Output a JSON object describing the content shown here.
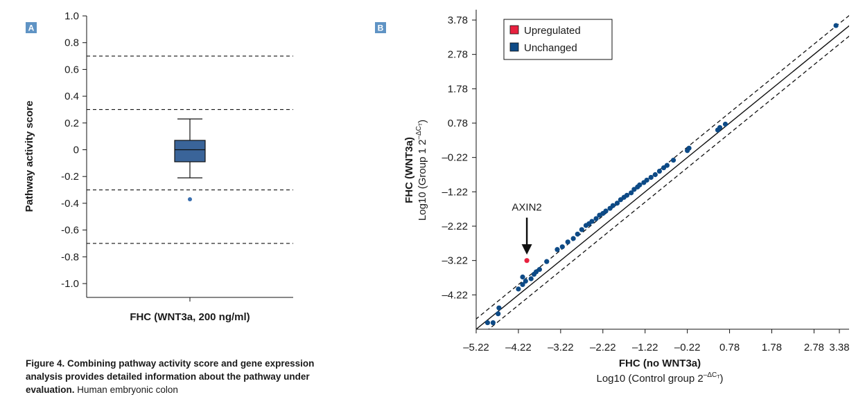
{
  "chart_data": [
    {
      "type": "box",
      "panel_label": "A",
      "ylabel": "Pathway activity score",
      "xlabel": "FHC (WNT3a, 200 ng/ml)",
      "ylim": [
        -1.1,
        1.0
      ],
      "yticks": [
        "1.0",
        "0.8",
        "0.6",
        "0.4",
        "0.2",
        "0",
        "-0.2",
        "-0.4",
        "-0.6",
        "-0.8",
        "-1.0"
      ],
      "ytick_values": [
        1.0,
        0.8,
        0.6,
        0.4,
        0.2,
        0,
        -0.2,
        -0.4,
        -0.6,
        -0.8,
        -1.0
      ],
      "threshold_lines": [
        0.7,
        0.3,
        -0.3,
        -0.7
      ],
      "box": {
        "min": -0.21,
        "q1": -0.09,
        "median": 0.0,
        "q3": 0.07,
        "max": 0.23
      },
      "outliers": [
        -0.37
      ],
      "colors": {
        "box": "#3a6499",
        "outlier": "#3a6faf"
      }
    },
    {
      "type": "scatter",
      "panel_label": "B",
      "xlabel": "FHC (no WNT3a)",
      "xlabel_sub": "Log10 (Control group 2",
      "xlabel_sup": "–ΔC",
      "xlabel_sup_sub": "T",
      "xlabel_close": ")",
      "ylabel": "FHC (WNT3a)",
      "ylabel_sub": "Log10 (Group 1 2",
      "ylabel_sup": "–ΔC",
      "ylabel_sup_sub": "T",
      "ylabel_close": ")",
      "xlim": [
        -5.22,
        3.38
      ],
      "ylim": [
        -5.22,
        3.78
      ],
      "xticks": [
        "–5.22",
        "–4.22",
        "–3.22",
        "–2.22",
        "–1.22",
        "–0.22",
        "0.78",
        "1.78",
        "2.78",
        "3.38"
      ],
      "xtick_values": [
        -5.22,
        -4.22,
        -3.22,
        -2.22,
        -1.22,
        -0.22,
        0.78,
        1.78,
        2.78,
        3.38
      ],
      "yticks": [
        "3.78",
        "2.78",
        "1.78",
        "0.78",
        "–0.22",
        "–1.22",
        "–2.22",
        "–3.22",
        "–4.22"
      ],
      "ytick_values": [
        3.78,
        2.78,
        1.78,
        0.78,
        -0.22,
        -1.22,
        -2.22,
        -3.22,
        -4.22
      ],
      "diagonal_offset": 0.3,
      "legend": [
        {
          "name": "Upregulated",
          "color": "#e8213f"
        },
        {
          "name": "Unchanged",
          "color": "#0d4a86"
        }
      ],
      "legend_position": "top-left",
      "annotation": {
        "text": "AXIN2",
        "x": -4.02,
        "y": -3.22
      },
      "series": [
        {
          "name": "Upregulated",
          "color": "#e8213f",
          "points": [
            [
              -4.02,
              -3.22
            ]
          ]
        },
        {
          "name": "Unchanged",
          "color": "#0d4a86",
          "points": [
            [
              -4.95,
              -5.03
            ],
            [
              -4.82,
              -5.03
            ],
            [
              -4.7,
              -4.77
            ],
            [
              -4.68,
              -4.6
            ],
            [
              -4.22,
              -4.05
            ],
            [
              -4.12,
              -3.92
            ],
            [
              -4.12,
              -3.7
            ],
            [
              -4.05,
              -3.82
            ],
            [
              -3.92,
              -3.75
            ],
            [
              -3.85,
              -3.62
            ],
            [
              -3.8,
              -3.55
            ],
            [
              -3.72,
              -3.48
            ],
            [
              -3.55,
              -3.25
            ],
            [
              -3.3,
              -2.9
            ],
            [
              -3.18,
              -2.82
            ],
            [
              -3.05,
              -2.68
            ],
            [
              -2.92,
              -2.58
            ],
            [
              -2.82,
              -2.45
            ],
            [
              -2.72,
              -2.32
            ],
            [
              -2.62,
              -2.2
            ],
            [
              -2.55,
              -2.15
            ],
            [
              -2.48,
              -2.08
            ],
            [
              -2.38,
              -2.0
            ],
            [
              -2.3,
              -1.9
            ],
            [
              -2.22,
              -1.85
            ],
            [
              -2.15,
              -1.78
            ],
            [
              -2.05,
              -1.7
            ],
            [
              -1.98,
              -1.62
            ],
            [
              -1.88,
              -1.55
            ],
            [
              -1.8,
              -1.45
            ],
            [
              -1.72,
              -1.38
            ],
            [
              -1.65,
              -1.32
            ],
            [
              -1.55,
              -1.25
            ],
            [
              -1.48,
              -1.15
            ],
            [
              -1.4,
              -1.08
            ],
            [
              -1.35,
              -1.02
            ],
            [
              -1.25,
              -0.95
            ],
            [
              -1.18,
              -0.88
            ],
            [
              -1.08,
              -0.8
            ],
            [
              -0.98,
              -0.72
            ],
            [
              -0.88,
              -0.62
            ],
            [
              -0.78,
              -0.52
            ],
            [
              -0.7,
              -0.45
            ],
            [
              -0.55,
              -0.3
            ],
            [
              -0.22,
              -0.02
            ],
            [
              -0.18,
              0.05
            ],
            [
              0.5,
              0.58
            ],
            [
              0.55,
              0.65
            ],
            [
              0.68,
              0.75
            ],
            [
              3.3,
              3.62
            ]
          ]
        }
      ]
    }
  ],
  "caption": {
    "bold": "Figure 4. Combining pathway activity score and gene expression analysis provides detailed information about the pathway under evaluation.",
    "text": "Human embryonic colon"
  }
}
